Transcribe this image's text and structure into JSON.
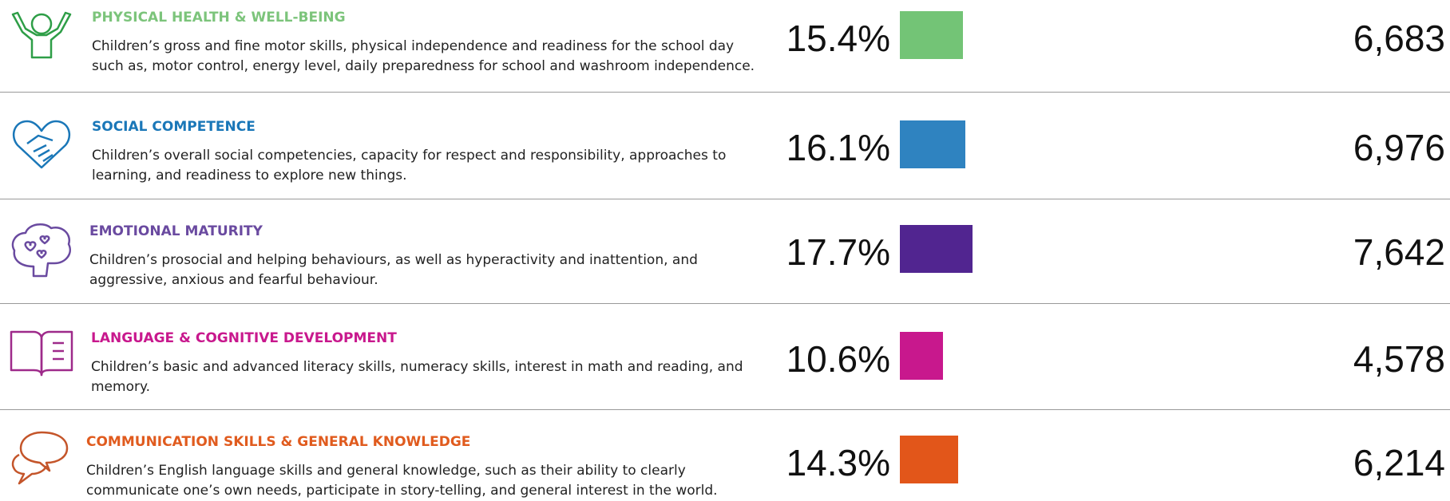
{
  "rows": [
    {
      "title": "PHYSICAL HEALTH & WELL-BEING",
      "color": "#73c476",
      "title_color": "#7cc47b",
      "description": [
        "Children’s gross and fine motor skills, physical independence and readiness for the school day",
        "such as, motor control, energy level, daily preparedness for school and washroom independence."
      ],
      "percent": 15.4,
      "percent_label": "15.4%",
      "count": "6,683"
    },
    {
      "title": "SOCIAL COMPETENCE",
      "color": "#2f83c0",
      "title_color": "#1a77b8",
      "description": [
        "Children’s overall social competencies, capacity for respect and responsibility, approaches to",
        "learning, and readiness to explore new things."
      ],
      "percent": 16.1,
      "percent_label": "16.1%",
      "count": "6,976"
    },
    {
      "title": "EMOTIONAL MATURITY",
      "color": "#512590",
      "title_color": "#6a4aa0",
      "description": [
        "Children’s prosocial and helping behaviours, as well as hyperactivity and inattention, and",
        "aggressive, anxious and fearful behaviour."
      ],
      "percent": 17.7,
      "percent_label": "17.7%",
      "count": "7,642"
    },
    {
      "title": "LANGUAGE & COGNITIVE DEVELOPMENT",
      "color": "#c8188d",
      "title_color": "#c8188d",
      "description": [
        "Children’s basic and advanced literacy skills, numeracy skills, interest in math and reading, and",
        "memory."
      ],
      "percent": 10.6,
      "percent_label": "10.6%",
      "count": "4,578"
    },
    {
      "title": "COMMUNICATION SKILLS & GENERAL KNOWLEDGE",
      "color": "#e2561a",
      "title_color": "#e05b1e",
      "description": [
        "Children’s English language skills and general knowledge, such as their ability to clearly",
        "communicate one’s own needs, participate in story-telling, and general interest in the world."
      ],
      "percent": 14.3,
      "percent_label": "14.3%",
      "count": "6,214"
    }
  ]
}
